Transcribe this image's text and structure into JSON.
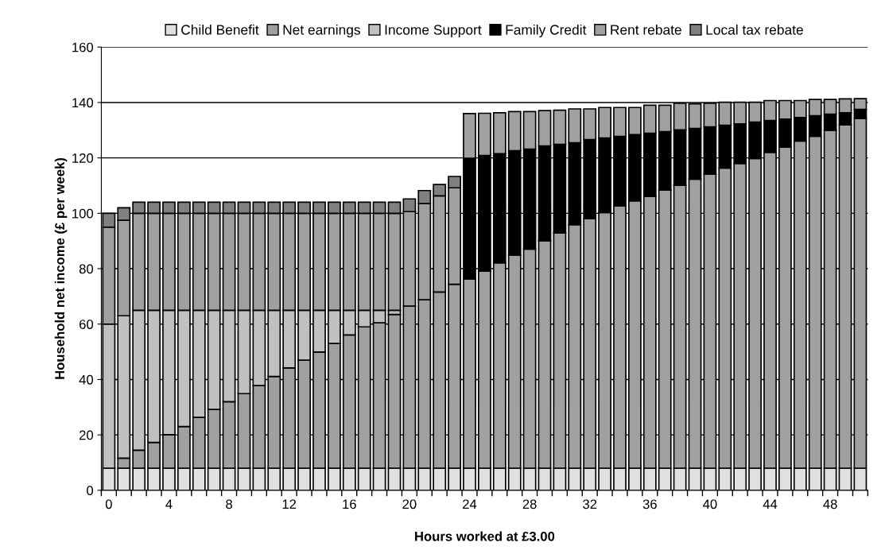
{
  "chart_data": {
    "type": "bar",
    "stacked": true,
    "xlabel": "Hours worked at £3.00",
    "ylabel": "Household net income (£ per week)",
    "categories": [
      "0",
      null,
      null,
      null,
      "4",
      null,
      null,
      null,
      "8",
      null,
      null,
      null,
      "12",
      null,
      null,
      null,
      "16",
      null,
      null,
      null,
      "20",
      null,
      null,
      null,
      "24",
      null,
      null,
      null,
      "28",
      null,
      null,
      null,
      "32",
      null,
      null,
      null,
      "36",
      null,
      null,
      null,
      "40",
      null,
      null,
      null,
      "44",
      null,
      null,
      null,
      "48",
      null,
      null
    ],
    "ylim": [
      0,
      160
    ],
    "yticks": [
      0,
      20,
      40,
      60,
      80,
      100,
      120,
      140,
      160
    ],
    "grid": "y",
    "legend": "top",
    "series": [
      {
        "name": "Child Benefit",
        "color": "#e0e0e0",
        "values": [
          8,
          8,
          8,
          8,
          8,
          8,
          8,
          8,
          8,
          8,
          8,
          8,
          8,
          8,
          8,
          8,
          8,
          8,
          8,
          8,
          8,
          8,
          8,
          8,
          8,
          8,
          8,
          8,
          8,
          8,
          8,
          8,
          8,
          8,
          8,
          8,
          8,
          8,
          8,
          8,
          8,
          8,
          8,
          8,
          8,
          8,
          8,
          8,
          8,
          8,
          8
        ]
      },
      {
        "name": "Net earnings",
        "color": "#a0a0a0",
        "values": [
          null,
          3.6,
          6.5,
          9.3,
          12.1,
          15.0,
          18.3,
          21.2,
          24.0,
          26.9,
          29.8,
          33.1,
          36.2,
          39.0,
          41.9,
          45.0,
          48.1,
          51.0,
          52.5,
          55.5,
          58.5,
          60.8,
          63.6,
          66.4,
          68.3,
          71.1,
          74.1,
          76.9,
          79.1,
          82.1,
          84.9,
          87.9,
          90.1,
          92.3,
          94.7,
          96.5,
          98.1,
          100.4,
          102.1,
          104.3,
          106.1,
          108.3,
          110.0,
          111.8,
          114.0,
          115.9,
          118.1,
          119.8,
          122.0,
          123.9,
          126.2
        ]
      },
      {
        "name": "Income Support",
        "color": "#c0c0c0",
        "values": [
          52,
          51.4,
          50.5,
          47.7,
          44.9,
          42.0,
          38.7,
          35.8,
          33.0,
          30.1,
          27.2,
          23.9,
          20.8,
          18.0,
          15.1,
          12.0,
          8.9,
          6.0,
          4.5,
          1.5,
          null,
          null,
          null,
          null,
          null,
          null,
          null,
          null,
          null,
          null,
          null,
          null,
          null,
          null,
          null,
          null,
          null,
          null,
          null,
          null,
          null,
          null,
          null,
          null,
          null,
          null,
          null,
          null,
          null,
          null,
          null
        ]
      },
      {
        "name": "Family Credit",
        "color": "#000000",
        "values": [
          null,
          null,
          null,
          null,
          null,
          null,
          null,
          null,
          null,
          null,
          null,
          null,
          null,
          null,
          null,
          null,
          null,
          null,
          null,
          null,
          null,
          null,
          null,
          null,
          43.6,
          41.8,
          39.4,
          37.7,
          36.1,
          34.2,
          32.0,
          29.6,
          28.5,
          26.9,
          25.1,
          23.9,
          22.8,
          21.1,
          20.0,
          18.3,
          17.1,
          15.5,
          14.3,
          13.1,
          11.5,
          10.1,
          8.5,
          7.4,
          5.8,
          4.4,
          3.3
        ]
      },
      {
        "name": "Rent rebate",
        "color": "#a0a0a0",
        "values": [
          35,
          34.5,
          35,
          35,
          35,
          35,
          35,
          35,
          35,
          35,
          35,
          35,
          35,
          35,
          35,
          35,
          35,
          35,
          35,
          35,
          34.1,
          34.7,
          34.7,
          34.8,
          16.1,
          15.2,
          14.8,
          14.1,
          13.5,
          12.8,
          12.3,
          12.2,
          11.1,
          11.0,
          10.4,
          9.8,
          10.1,
          9.5,
          9.6,
          8.9,
          8.5,
          8.3,
          7.8,
          7.2,
          7.2,
          6.7,
          6.1,
          5.9,
          5.3,
          5.0,
          3.9
        ]
      },
      {
        "name": "Local tax rebate",
        "color": "#808080",
        "values": [
          5,
          4.5,
          4,
          4,
          4,
          4,
          4,
          4,
          4,
          4,
          4,
          4,
          4,
          4,
          4,
          4,
          4,
          4,
          4,
          4,
          4.6,
          4.7,
          4.1,
          4.1,
          null,
          null,
          null,
          null,
          null,
          null,
          null,
          null,
          null,
          null,
          null,
          null,
          null,
          null,
          null,
          null,
          null,
          null,
          null,
          null,
          null,
          null,
          null,
          null,
          null,
          null,
          null
        ]
      }
    ]
  }
}
